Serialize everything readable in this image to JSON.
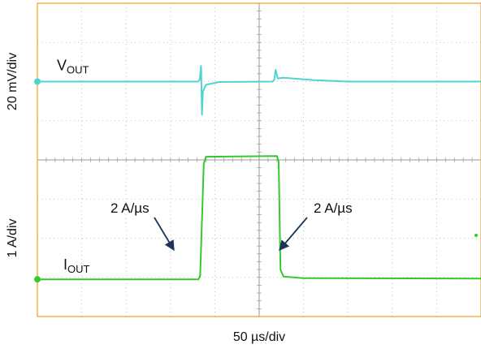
{
  "chart_data": {
    "type": "line",
    "title": "",
    "xlabel": "50 µs/div",
    "ylabels": [
      "20 mV/div",
      "1 A/div"
    ],
    "x_divisions": 10,
    "y_divisions": 8,
    "grid": true,
    "colors": {
      "vout": "#4fd3d3",
      "iout": "#35c82f",
      "grid": "#b0b0b0",
      "frame": "#f0a020",
      "arrow": "#1e3557"
    },
    "series": [
      {
        "name": "VOUT",
        "name_main": "V",
        "name_sub": "OUT",
        "channel": "2",
        "unit_per_div": "20 mV",
        "baseline_div": 6.0,
        "points_div": [
          [
            0.0,
            6.0
          ],
          [
            3.62,
            6.0
          ],
          [
            3.66,
            6.05
          ],
          [
            3.69,
            6.4
          ],
          [
            3.71,
            5.15
          ],
          [
            3.73,
            5.75
          ],
          [
            3.8,
            5.92
          ],
          [
            4.1,
            5.99
          ],
          [
            5.3,
            6.0
          ],
          [
            5.34,
            6.05
          ],
          [
            5.37,
            6.3
          ],
          [
            5.42,
            6.08
          ],
          [
            5.55,
            6.1
          ],
          [
            6.2,
            6.04
          ],
          [
            7.0,
            6.0
          ],
          [
            10.0,
            6.0
          ]
        ]
      },
      {
        "name": "IOUT",
        "name_main": "I",
        "name_sub": "OUT",
        "channel": "4",
        "unit_per_div": "1 A",
        "baseline_div": 0.95,
        "points_div": [
          [
            0.0,
            0.95
          ],
          [
            3.63,
            0.95
          ],
          [
            3.67,
            1.05
          ],
          [
            3.75,
            3.9
          ],
          [
            3.8,
            4.08
          ],
          [
            5.4,
            4.1
          ],
          [
            5.44,
            3.95
          ],
          [
            5.48,
            1.2
          ],
          [
            5.55,
            1.02
          ],
          [
            6.0,
            0.98
          ],
          [
            10.0,
            0.97
          ]
        ]
      }
    ],
    "annotations": [
      {
        "text": "2 A/µs",
        "position": "rising-edge"
      },
      {
        "text": "2 A/µs",
        "position": "falling-edge"
      }
    ]
  }
}
